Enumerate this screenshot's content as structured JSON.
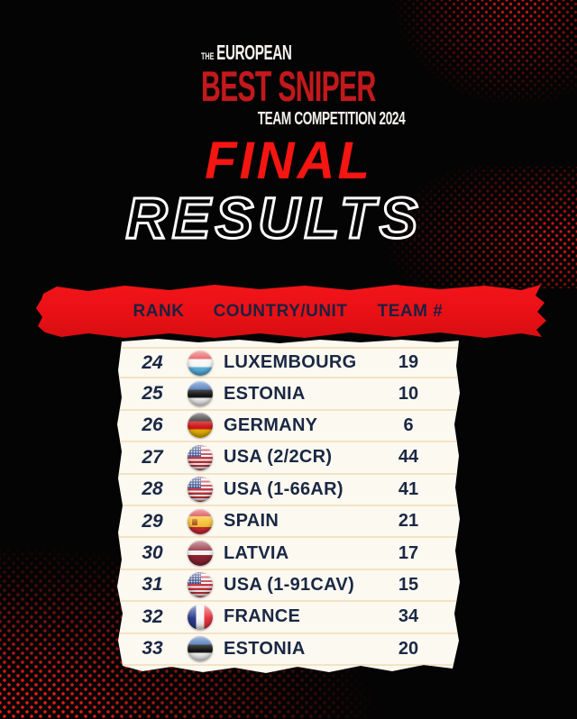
{
  "logo": {
    "the": "THE",
    "european": "EUROPEAN",
    "best_sniper": "BEST SNIPER",
    "team_competition": "TEAM COMPETITION 2024"
  },
  "title": {
    "final": "FINAL",
    "results": "RESULTS"
  },
  "colors": {
    "background": "#050404",
    "banner_red": "#e81015",
    "logo_red": "#c2191d",
    "final_red": "#f51511",
    "navy_text": "#1a2844",
    "panel_background": "#fcf9f1",
    "row_divider": "#f3e3c5",
    "halftone_red": "#d41414"
  },
  "table": {
    "headers": {
      "rank": "RANK",
      "country": "COUNTRY/UNIT",
      "team": "TEAM #"
    },
    "rows": [
      {
        "rank": "24",
        "country": "LUXEMBOURG",
        "team": "19",
        "flag": "lu",
        "flag_name": "luxembourg-flag-icon"
      },
      {
        "rank": "25",
        "country": "ESTONIA",
        "team": "10",
        "flag": "ee",
        "flag_name": "estonia-flag-icon"
      },
      {
        "rank": "26",
        "country": "GERMANY",
        "team": "6",
        "flag": "de",
        "flag_name": "germany-flag-icon"
      },
      {
        "rank": "27",
        "country": "USA (2/2CR)",
        "team": "44",
        "flag": "us",
        "flag_name": "usa-flag-icon"
      },
      {
        "rank": "28",
        "country": "USA (1-66AR)",
        "team": "41",
        "flag": "us",
        "flag_name": "usa-flag-icon"
      },
      {
        "rank": "29",
        "country": "SPAIN",
        "team": "21",
        "flag": "es",
        "flag_name": "spain-flag-icon"
      },
      {
        "rank": "30",
        "country": "LATVIA",
        "team": "17",
        "flag": "lv",
        "flag_name": "latvia-flag-icon"
      },
      {
        "rank": "31",
        "country": "USA (1-91CAV)",
        "team": "15",
        "flag": "us",
        "flag_name": "usa-flag-icon"
      },
      {
        "rank": "32",
        "country": "FRANCE",
        "team": "34",
        "flag": "fr",
        "flag_name": "france-flag-icon"
      },
      {
        "rank": "33",
        "country": "ESTONIA",
        "team": "20",
        "flag": "ee",
        "flag_name": "estonia-flag-icon"
      }
    ]
  }
}
